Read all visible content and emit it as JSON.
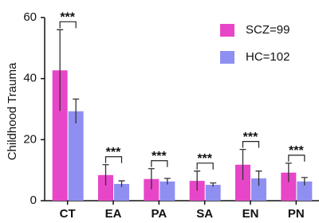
{
  "chart_data": {
    "type": "bar",
    "ylabel": "Childhood Trauma",
    "categories": [
      "CT",
      "EA",
      "PA",
      "SA",
      "EN",
      "PN"
    ],
    "series": [
      {
        "name": "SCZ=99",
        "color": "#e846c8",
        "values": [
          42.7,
          8.4,
          7.1,
          6.5,
          11.8,
          9.2
        ],
        "errors": [
          13.3,
          3.4,
          3.4,
          3.2,
          5.0,
          3.1
        ]
      },
      {
        "name": "HC=102",
        "color": "#8f8ff2",
        "values": [
          29.3,
          5.5,
          6.3,
          5.2,
          7.3,
          6.3
        ],
        "errors": [
          4.0,
          1.0,
          1.0,
          0.6,
          2.4,
          1.3
        ]
      }
    ],
    "annotations": [
      "***",
      "***",
      "***",
      "***",
      "***",
      "***"
    ],
    "ylim": [
      0,
      60
    ],
    "yticks": [
      0,
      20,
      40,
      60
    ],
    "grid": false,
    "legend": "upper right"
  }
}
